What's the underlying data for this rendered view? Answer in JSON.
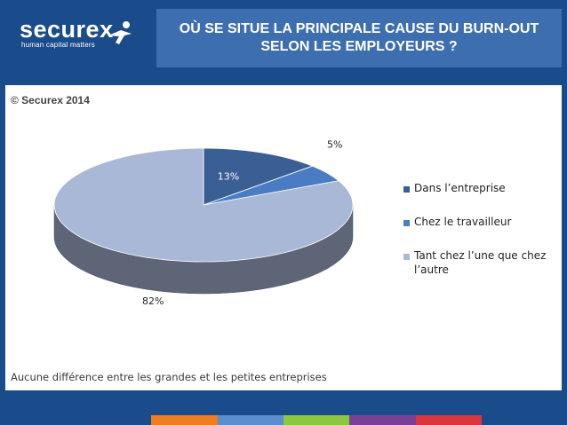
{
  "header": {
    "logo_text": "securex",
    "logo_tagline": "human capital matters",
    "title": "OÙ SE SITUE LA PRINCIPALE CAUSE DU BURN-OUT\nSELON LES EMPLOYEURS ?"
  },
  "panel": {
    "copyright": "© Securex 2014",
    "footnote": "Aucune différence entre les grandes et les petites entreprises"
  },
  "chart_data": {
    "type": "pie",
    "title": "",
    "series": [
      {
        "name": "Dans l’entreprise",
        "value": 13,
        "label": "13%",
        "color": "#3a5f94"
      },
      {
        "name": "Chez le travailleur",
        "value": 5,
        "label": "5%",
        "color": "#4a7cc4"
      },
      {
        "name": "Tant chez l’une que chez l’autre",
        "value": 82,
        "label": "82%",
        "color": "#a9b8d7"
      }
    ],
    "legend_position": "right",
    "style": "3d"
  },
  "colors": {
    "background": "#1a4c8c",
    "title_box": "#3d6fb0",
    "bottom_bar": [
      "#1c4a8a",
      "#ef7d22",
      "#5b8ecf",
      "#8dc63f",
      "#7b3f98",
      "#d9363e"
    ]
  }
}
